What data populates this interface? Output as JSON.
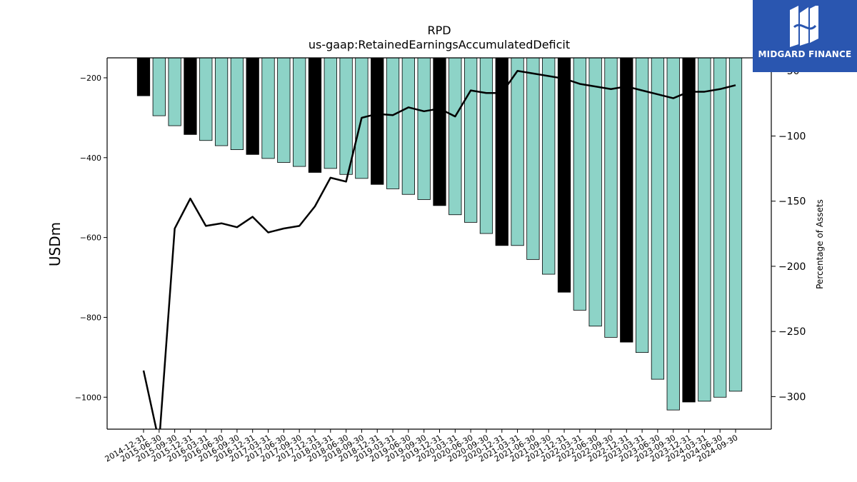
{
  "chart_data": {
    "type": "bar",
    "title": "RPD",
    "subtitle": "us-gaap:RetainedEarningsAccumulatedDeficit",
    "ylabel": "USDm",
    "y2label": "Percentage of Assets",
    "ylim": [
      -1080,
      -150
    ],
    "y2lim": [
      -325,
      -40
    ],
    "yticks": [
      -200,
      -400,
      -600,
      -800,
      -1000
    ],
    "y2ticks": [
      -50,
      -100,
      -150,
      -200,
      -250,
      -300
    ],
    "grid": false,
    "categories": [
      "2014-12-31",
      "2015-06-30",
      "2015-09-30",
      "2015-12-31",
      "2016-03-31",
      "2016-06-30",
      "2016-09-30",
      "2016-12-31",
      "2017-03-31",
      "2017-06-30",
      "2017-09-30",
      "2017-12-31",
      "2018-03-31",
      "2018-06-30",
      "2018-09-30",
      "2018-12-31",
      "2019-03-31",
      "2019-06-30",
      "2019-09-30",
      "2019-12-31",
      "2020-03-31",
      "2020-06-30",
      "2020-09-30",
      "2020-12-31",
      "2021-03-31",
      "2021-06-30",
      "2021-09-30",
      "2021-12-31",
      "2022-03-31",
      "2022-06-30",
      "2022-09-30",
      "2022-12-31",
      "2023-03-31",
      "2023-06-30",
      "2023-09-30",
      "2023-12-31",
      "2024-03-31",
      "2024-06-30",
      "2024-09-30"
    ],
    "series": [
      {
        "type": "bar",
        "values": [
          -245,
          -295,
          -320,
          -342,
          -357,
          -370,
          -380,
          -392,
          -402,
          -412,
          -422,
          -437,
          -427,
          -442,
          -452,
          -467,
          -478,
          -492,
          -505,
          -520,
          -543,
          -562,
          -590,
          -620,
          -620,
          -655,
          -692,
          -737,
          -782,
          -822,
          -850,
          -862,
          -888,
          -955,
          -1032,
          -1012,
          -1010,
          -1000,
          -985
        ],
        "highlight": [
          true,
          false,
          false,
          true,
          false,
          false,
          false,
          true,
          false,
          false,
          false,
          true,
          false,
          false,
          false,
          true,
          false,
          false,
          false,
          true,
          false,
          false,
          false,
          true,
          false,
          false,
          false,
          true,
          false,
          false,
          false,
          true,
          false,
          false,
          false,
          true,
          false,
          false,
          false
        ]
      },
      {
        "type": "line",
        "axis": "right",
        "values": [
          -280,
          -335,
          -171,
          -148,
          -169,
          -167,
          -170,
          -162,
          -174,
          -171,
          -169,
          -154,
          -132,
          -135,
          -86,
          -83,
          -84,
          -78,
          -81,
          -79,
          -85,
          -65,
          -67,
          -67,
          -50,
          -52,
          -54,
          -56,
          -60,
          -62,
          -64,
          -62,
          -65,
          -68,
          -71,
          -66,
          -66,
          -64,
          -61
        ]
      }
    ],
    "colors": {
      "bar": "#8dd3c7",
      "bar_highlight": "#000000",
      "line": "#000000"
    }
  },
  "logo": {
    "text": "MIDGARD FINANCE"
  }
}
